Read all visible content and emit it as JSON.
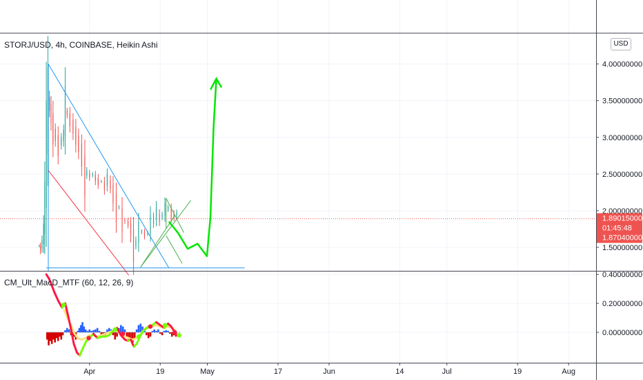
{
  "main_legend": "STORJ/USD, 4h, COINBASE, Heikin Ashi",
  "indicator_legend": "CM_Ult_MacD_MTF (60, 12, 26, 9)",
  "currency_button": "USD",
  "price_axis": {
    "ticks": [
      "4.00000000",
      "3.50000000",
      "3.00000000",
      "2.50000000",
      "2.00000000",
      "1.50000000"
    ],
    "tick_values": [
      4.0,
      3.5,
      3.0,
      2.5,
      2.0,
      1.5
    ],
    "ylim": [
      1.18,
      4.42
    ]
  },
  "indicator_axis": {
    "ticks": [
      "0.40000000",
      "0.20000000",
      "0.00000000"
    ],
    "tick_values": [
      0.4,
      0.2,
      0.0
    ],
    "ylim": [
      -0.21,
      0.42
    ]
  },
  "time_axis": {
    "labels": [
      "Apr",
      "19",
      "May",
      "17",
      "Jun",
      "14",
      "Jul",
      "19",
      "Aug"
    ],
    "label_days": [
      31,
      49,
      61,
      79,
      92,
      110,
      122,
      140,
      153
    ]
  },
  "price_badges": [
    {
      "value": "1.89015000",
      "color": "#ef5350"
    },
    {
      "value": "01:45:48",
      "color": "#ef5350"
    },
    {
      "value": "1.87040000",
      "color": "#ef5350"
    }
  ],
  "colors": {
    "up": "#26a69a",
    "down": "#ef5350",
    "trend_blue": "#2196f3",
    "trend_red": "#f23645",
    "trend_green": "#4caf50",
    "arrow_green": "#00e600",
    "grid": "#f0f3fa"
  },
  "chart_data": [
    {
      "type": "candlestick",
      "title": "STORJ/USD, 4h, COINBASE, Heikin Ashi",
      "x_unit": "day of 2021 (approx.)",
      "y_unit": "USD",
      "ylim": [
        1.18,
        4.42
      ],
      "xlim": [
        8.2,
        160
      ],
      "close_series": [
        [
          18.2,
          1.52
        ],
        [
          18.5,
          1.45
        ],
        [
          18.9,
          1.6
        ],
        [
          19.3,
          1.82
        ],
        [
          19.6,
          2.4
        ],
        [
          20.0,
          3.5
        ],
        [
          20.4,
          3.95
        ],
        [
          20.8,
          3.55
        ],
        [
          21.2,
          3.2
        ],
        [
          21.7,
          2.9
        ],
        [
          22.3,
          2.95
        ],
        [
          23.0,
          2.75
        ],
        [
          23.8,
          3.0
        ],
        [
          24.4,
          3.1
        ],
        [
          24.8,
          3.7
        ],
        [
          25.3,
          3.3
        ],
        [
          26.0,
          3.15
        ],
        [
          26.8,
          3.05
        ],
        [
          27.5,
          2.9
        ],
        [
          28.2,
          2.8
        ],
        [
          29.0,
          2.6
        ],
        [
          29.8,
          2.2
        ],
        [
          30.3,
          2.55
        ],
        [
          31.0,
          2.45
        ],
        [
          31.8,
          2.5
        ],
        [
          32.5,
          2.4
        ],
        [
          33.2,
          2.35
        ],
        [
          34.0,
          2.4
        ],
        [
          34.8,
          2.28
        ],
        [
          35.5,
          2.5
        ],
        [
          36.3,
          2.3
        ],
        [
          37.0,
          2.1
        ],
        [
          37.8,
          1.85
        ],
        [
          38.5,
          2.05
        ],
        [
          39.3,
          1.7
        ],
        [
          40.0,
          1.85
        ],
        [
          40.8,
          1.8
        ],
        [
          41.5,
          1.65
        ],
        [
          42.2,
          1.3
        ],
        [
          42.8,
          1.6
        ],
        [
          43.5,
          1.85
        ],
        [
          44.3,
          1.72
        ],
        [
          45.0,
          1.65
        ],
        [
          45.8,
          1.7
        ],
        [
          46.5,
          1.95
        ],
        [
          47.3,
          1.92
        ],
        [
          48.0,
          2.05
        ],
        [
          48.8,
          1.85
        ],
        [
          49.5,
          1.95
        ],
        [
          50.2,
          2.1
        ],
        [
          51.0,
          2.05
        ],
        [
          51.8,
          1.9
        ],
        [
          52.5,
          1.9
        ],
        [
          53.2,
          1.98
        ]
      ]
    },
    {
      "type": "line",
      "title": "CM_Ult_MacD_MTF (60, 12, 26, 9)",
      "ylim": [
        -0.21,
        0.42
      ],
      "series": [
        {
          "values": [
            [
              20.0,
              0.4
            ],
            [
              20.7,
              0.37
            ],
            [
              21.3,
              0.33
            ],
            [
              22.0,
              0.28
            ],
            [
              23.0,
              0.22
            ],
            [
              24.0,
              0.17
            ],
            [
              24.8,
              0.2
            ],
            [
              25.5,
              0.12
            ],
            [
              26.3,
              0.02
            ],
            [
              27.0,
              -0.08
            ],
            [
              27.8,
              -0.14
            ],
            [
              28.5,
              -0.16
            ],
            [
              29.3,
              -0.11
            ],
            [
              30.2,
              -0.06
            ],
            [
              31.0,
              -0.04
            ],
            [
              32.0,
              -0.01
            ],
            [
              33.0,
              -0.04
            ],
            [
              34.0,
              -0.03
            ],
            [
              35.0,
              -0.03
            ],
            [
              36.0,
              -0.02
            ],
            [
              37.0,
              0.01
            ],
            [
              38.0,
              0.03
            ],
            [
              39.0,
              -0.02
            ],
            [
              40.0,
              -0.05
            ],
            [
              40.8,
              -0.06
            ],
            [
              41.5,
              -0.05
            ],
            [
              42.3,
              -0.1
            ],
            [
              43.0,
              -0.08
            ],
            [
              44.0,
              -0.02
            ],
            [
              45.0,
              0.02
            ],
            [
              46.0,
              0.04
            ],
            [
              47.0,
              0.05
            ],
            [
              48.0,
              0.07
            ],
            [
              49.0,
              0.05
            ],
            [
              50.0,
              0.03
            ],
            [
              51.0,
              0.06
            ],
            [
              51.8,
              0.04
            ],
            [
              52.5,
              0.01
            ],
            [
              53.2,
              -0.02
            ]
          ]
        },
        {
          "values": [
            [
              24.5,
              0.16
            ],
            [
              25.5,
              0.09
            ],
            [
              26.3,
              0.05
            ],
            [
              27.2,
              -0.01
            ],
            [
              28.0,
              -0.04
            ],
            [
              29.0,
              -0.05
            ],
            [
              30.0,
              -0.04
            ],
            [
              31.0,
              -0.02
            ],
            [
              32.0,
              -0.02
            ],
            [
              33.0,
              -0.03
            ],
            [
              34.0,
              -0.02
            ],
            [
              35.0,
              -0.01
            ],
            [
              36.0,
              0.0
            ],
            [
              37.0,
              0.01
            ],
            [
              38.0,
              0.01
            ],
            [
              39.0,
              -0.02
            ],
            [
              40.0,
              -0.03
            ],
            [
              41.0,
              -0.04
            ],
            [
              42.0,
              -0.05
            ],
            [
              43.0,
              -0.04
            ],
            [
              44.0,
              -0.01
            ],
            [
              45.0,
              0.02
            ],
            [
              46.0,
              0.03
            ],
            [
              47.0,
              0.04
            ],
            [
              48.0,
              0.05
            ],
            [
              49.0,
              0.04
            ],
            [
              50.0,
              0.03
            ],
            [
              51.0,
              0.04
            ],
            [
              52.0,
              0.03
            ],
            [
              53.0,
              0.01
            ]
          ]
        }
      ],
      "histogram": [
        [
          20.2,
          -0.05
        ],
        [
          20.6,
          -0.09
        ],
        [
          21.0,
          -0.06
        ],
        [
          21.4,
          -0.08
        ],
        [
          21.8,
          -0.05
        ],
        [
          22.2,
          -0.07
        ],
        [
          22.6,
          -0.04
        ],
        [
          23.0,
          -0.06
        ],
        [
          23.4,
          -0.03
        ],
        [
          23.8,
          -0.05
        ],
        [
          24.2,
          -0.02
        ],
        [
          24.8,
          0.015
        ],
        [
          25.3,
          0.03
        ],
        [
          25.8,
          0.02
        ],
        [
          26.3,
          -0.02
        ],
        [
          26.7,
          -0.04
        ],
        [
          27.1,
          -0.03
        ],
        [
          27.5,
          -0.05
        ],
        [
          28.0,
          0.01
        ],
        [
          28.4,
          0.03
        ],
        [
          28.8,
          0.05
        ],
        [
          29.2,
          0.07
        ],
        [
          29.6,
          0.04
        ],
        [
          30.0,
          0.02
        ],
        [
          30.5,
          0.01
        ],
        [
          31.0,
          0.02
        ],
        [
          31.5,
          0.01
        ],
        [
          32.0,
          0.015
        ],
        [
          32.5,
          0.02
        ],
        [
          33.0,
          0.03
        ],
        [
          33.5,
          0.01
        ],
        [
          34.0,
          -0.02
        ],
        [
          34.5,
          -0.03
        ],
        [
          35.0,
          -0.02
        ],
        [
          35.5,
          0.02
        ],
        [
          36.0,
          0.03
        ],
        [
          36.5,
          0.02
        ],
        [
          37.0,
          -0.02
        ],
        [
          37.5,
          -0.05
        ],
        [
          38.0,
          -0.03
        ],
        [
          38.5,
          0.03
        ],
        [
          39.0,
          0.05
        ],
        [
          39.5,
          0.04
        ],
        [
          40.0,
          0.02
        ],
        [
          40.5,
          -0.03
        ],
        [
          41.0,
          -0.06
        ],
        [
          41.5,
          -0.05
        ],
        [
          42.0,
          -0.07
        ],
        [
          42.5,
          -0.04
        ],
        [
          43.0,
          0.02
        ],
        [
          43.5,
          0.05
        ],
        [
          44.0,
          0.06
        ],
        [
          44.5,
          0.04
        ],
        [
          45.0,
          0.02
        ],
        [
          45.5,
          -0.02
        ],
        [
          46.0,
          -0.04
        ],
        [
          46.5,
          -0.03
        ],
        [
          47.0,
          0.01
        ],
        [
          47.5,
          0.02
        ],
        [
          48.0,
          0.01
        ],
        [
          48.5,
          0.02
        ],
        [
          49.0,
          -0.01
        ],
        [
          49.5,
          -0.02
        ],
        [
          50.0,
          0.01
        ],
        [
          50.5,
          0.015
        ],
        [
          51.0,
          0.01
        ],
        [
          51.5,
          -0.01
        ],
        [
          52.0,
          -0.03
        ],
        [
          52.5,
          -0.02
        ],
        [
          53.0,
          -0.03
        ]
      ],
      "markers": [
        [
          24.4,
          0.19
        ],
        [
          30.8,
          -0.04
        ],
        [
          37.5,
          0.02
        ],
        [
          39.5,
          -0.01
        ],
        [
          43.5,
          -0.03
        ],
        [
          46.5,
          0.04
        ],
        [
          50.2,
          0.05
        ],
        [
          52.7,
          0.0
        ],
        [
          53.8,
          -0.02
        ]
      ]
    }
  ],
  "drawings": {
    "triangle": [
      [
        20.5,
        4.0
      ],
      [
        51.2,
        1.22
      ],
      [
        25.0,
        1.22
      ]
    ],
    "triangle_red": [
      [
        20.5,
        2.55
      ],
      [
        41.0,
        1.12
      ]
    ],
    "baseline": [
      [
        20.0,
        1.22
      ],
      [
        70.5,
        1.22
      ]
    ],
    "fan_apex": [
      44.0,
      1.23
    ],
    "fan_target": [
      56.8,
      2.14
    ],
    "wedge": [
      [
        50.5,
        2.17
      ],
      [
        55.0,
        1.7
      ],
      [
        50.5,
        1.66
      ],
      [
        54.6,
        1.28
      ]
    ],
    "green_path": [
      [
        51.2,
        1.85
      ],
      [
        53.5,
        1.7
      ],
      [
        56.0,
        1.48
      ],
      [
        58.5,
        1.55
      ],
      [
        60.9,
        1.38
      ],
      [
        61.8,
        1.92
      ],
      [
        62.6,
        3.15
      ],
      [
        63.3,
        3.8
      ]
    ],
    "arrow_head": [
      [
        61.8,
        3.65
      ],
      [
        63.3,
        3.8
      ],
      [
        64.6,
        3.68
      ]
    ]
  }
}
